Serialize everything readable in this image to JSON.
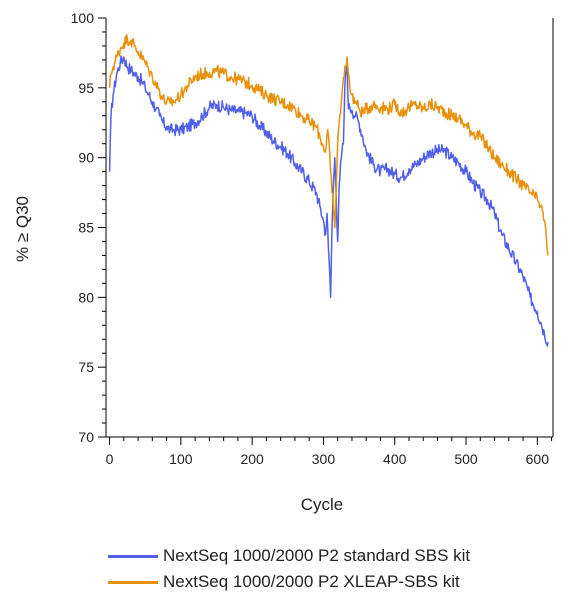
{
  "chart_data": {
    "type": "line",
    "title": "",
    "xlabel": "Cycle",
    "ylabel": "% ≥ Q30",
    "xlim": [
      -5,
      622
    ],
    "ylim": [
      70,
      100
    ],
    "xticks": [
      0,
      100,
      200,
      300,
      400,
      500,
      600
    ],
    "yticks": [
      70,
      75,
      80,
      85,
      90,
      95,
      100
    ],
    "grid": false,
    "legend_position": "bottom",
    "series": [
      {
        "name": "NextSeq 1000/2000 P2 standard SBS kit",
        "color": "#5060e8",
        "x": [
          0,
          2,
          5,
          10,
          15,
          20,
          25,
          30,
          35,
          40,
          45,
          50,
          55,
          60,
          65,
          70,
          75,
          80,
          85,
          90,
          100,
          110,
          120,
          130,
          140,
          150,
          160,
          170,
          180,
          190,
          200,
          210,
          220,
          230,
          240,
          250,
          260,
          270,
          280,
          290,
          295,
          300,
          303,
          305,
          307,
          309,
          310,
          312,
          314,
          316,
          318,
          320,
          322,
          325,
          328,
          330,
          333,
          335,
          337,
          340,
          345,
          350,
          355,
          360,
          370,
          380,
          390,
          400,
          410,
          420,
          430,
          440,
          450,
          460,
          470,
          480,
          490,
          500,
          510,
          520,
          530,
          540,
          550,
          560,
          570,
          580,
          590,
          600,
          605,
          610,
          615
        ],
        "y": [
          89,
          93,
          94.5,
          96,
          96.8,
          97.2,
          96.5,
          96.3,
          96,
          95.8,
          95.5,
          95,
          94.5,
          94,
          93.5,
          93,
          92.5,
          92.2,
          92,
          92,
          92,
          92.2,
          92.5,
          93,
          93.6,
          93.8,
          93.6,
          93.4,
          93.3,
          93.2,
          93,
          92.3,
          91.8,
          91.2,
          90.8,
          90.3,
          89.6,
          89,
          88.3,
          87.5,
          86.5,
          85.5,
          84.5,
          86,
          83.5,
          81.5,
          80,
          85,
          88,
          90,
          87,
          84,
          88,
          90,
          91,
          95,
          97,
          93.5,
          93.6,
          93.4,
          93,
          92.5,
          91.5,
          90.5,
          89.5,
          89,
          89.2,
          88.8,
          88.6,
          89.2,
          89.5,
          90,
          90.4,
          90.5,
          90.5,
          90,
          89.6,
          89,
          88.2,
          87.5,
          87,
          86,
          84.5,
          83.5,
          82.5,
          81.5,
          80,
          79,
          78.2,
          77.4,
          76.8
        ]
      },
      {
        "name": "NextSeq 1000/2000 P2 XLEAP-SBS kit",
        "color": "#e8900a",
        "x": [
          0,
          2,
          5,
          10,
          15,
          20,
          25,
          30,
          35,
          40,
          45,
          50,
          55,
          60,
          65,
          70,
          75,
          80,
          85,
          90,
          100,
          110,
          120,
          130,
          140,
          150,
          160,
          170,
          180,
          190,
          200,
          210,
          220,
          230,
          240,
          250,
          260,
          270,
          280,
          290,
          295,
          300,
          303,
          306,
          308,
          310,
          312,
          314,
          316,
          318,
          320,
          323,
          326,
          330,
          333,
          335,
          337,
          340,
          345,
          350,
          355,
          360,
          370,
          380,
          390,
          400,
          410,
          420,
          430,
          440,
          450,
          460,
          470,
          480,
          490,
          500,
          510,
          520,
          530,
          540,
          550,
          560,
          570,
          580,
          590,
          600,
          605,
          610,
          613,
          615
        ],
        "y": [
          95,
          96,
          96.5,
          97.2,
          97.8,
          98.2,
          98.5,
          98.4,
          98,
          97.6,
          97.2,
          96.8,
          96.3,
          95.8,
          95.3,
          94.8,
          94.2,
          94,
          93.9,
          94,
          94.5,
          95.2,
          95.8,
          96,
          96.1,
          96.2,
          96,
          95.8,
          95.6,
          95.4,
          95.2,
          94.8,
          94.5,
          94.2,
          94,
          93.8,
          93.5,
          93,
          92.6,
          92.2,
          91.5,
          90.8,
          90.5,
          92,
          91,
          89,
          87.5,
          86.5,
          85,
          88,
          91,
          93,
          94.5,
          96.5,
          97.2,
          96,
          95,
          94.5,
          94,
          93.5,
          93.2,
          93.5,
          93.8,
          93.6,
          93.5,
          93.8,
          93.2,
          93.6,
          93.8,
          93.5,
          93.8,
          93.6,
          93.3,
          93,
          92.8,
          92.3,
          91.8,
          91.5,
          90.8,
          90,
          89.5,
          89,
          88.5,
          88,
          87.5,
          87,
          86.5,
          85.5,
          84,
          83
        ]
      }
    ]
  }
}
